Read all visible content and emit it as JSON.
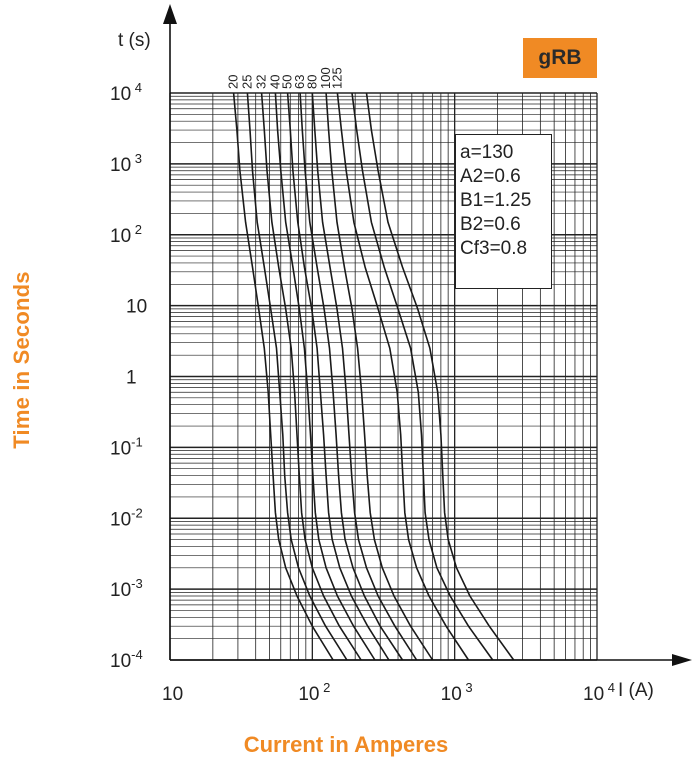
{
  "badge": "gRB",
  "outer_labels": {
    "y": "Time in Seconds",
    "x": "Current in Amperes"
  },
  "params": [
    "a=130",
    "A2=0.6",
    "B1=1.25",
    "B2=0.6",
    "Cf3=0.8"
  ],
  "chart_data": {
    "type": "line",
    "title": "",
    "xlabel": "I (A)",
    "ylabel": "t (s)",
    "xscale": "log",
    "yscale": "log",
    "xlim": [
      10,
      10000
    ],
    "ylim": [
      0.0001,
      10000
    ],
    "grid": true,
    "x_ticks": [
      {
        "v": 10,
        "label": "10"
      },
      {
        "v": 100,
        "label": "10 2"
      },
      {
        "v": 1000,
        "label": "10 3"
      },
      {
        "v": 10000,
        "label": "10 4"
      }
    ],
    "y_ticks": [
      {
        "v": 10000,
        "label": "10 4"
      },
      {
        "v": 1000,
        "label": "10 3"
      },
      {
        "v": 100,
        "label": "10 2"
      },
      {
        "v": 10,
        "label": "10"
      },
      {
        "v": 1,
        "label": "1"
      },
      {
        "v": 0.1,
        "label": "10-1"
      },
      {
        "v": 0.01,
        "label": "10-2"
      },
      {
        "v": 0.001,
        "label": "10-3"
      },
      {
        "v": 0.0001,
        "label": "10-4"
      }
    ],
    "series": [
      {
        "name": "20",
        "points": [
          [
            28,
            10000
          ],
          [
            29.5,
            3000
          ],
          [
            31,
            800
          ],
          [
            34,
            150
          ],
          [
            38,
            35
          ],
          [
            42,
            9
          ],
          [
            46,
            2.5
          ],
          [
            49,
            0.6
          ],
          [
            51,
            0.15
          ],
          [
            53,
            0.04
          ],
          [
            55,
            0.012
          ],
          [
            58,
            0.005
          ],
          [
            65,
            0.002
          ],
          [
            78,
            0.0008
          ],
          [
            100,
            0.0003
          ],
          [
            140,
            0.0001
          ]
        ]
      },
      {
        "name": "25",
        "points": [
          [
            35,
            10000
          ],
          [
            36.5,
            3000
          ],
          [
            38,
            800
          ],
          [
            41,
            150
          ],
          [
            46,
            35
          ],
          [
            51,
            9
          ],
          [
            56,
            2.5
          ],
          [
            59,
            0.6
          ],
          [
            62,
            0.15
          ],
          [
            64,
            0.04
          ],
          [
            67,
            0.012
          ],
          [
            71,
            0.005
          ],
          [
            80,
            0.002
          ],
          [
            96,
            0.0008
          ],
          [
            124,
            0.0003
          ],
          [
            175,
            0.0001
          ]
        ]
      },
      {
        "name": "32",
        "points": [
          [
            44,
            10000
          ],
          [
            46,
            3000
          ],
          [
            48,
            800
          ],
          [
            52,
            150
          ],
          [
            58,
            35
          ],
          [
            65,
            9
          ],
          [
            71,
            2.5
          ],
          [
            75,
            0.6
          ],
          [
            78,
            0.15
          ],
          [
            81,
            0.04
          ],
          [
            84,
            0.012
          ],
          [
            89,
            0.005
          ],
          [
            100,
            0.002
          ],
          [
            120,
            0.0008
          ],
          [
            155,
            0.0003
          ],
          [
            220,
            0.0001
          ]
        ]
      },
      {
        "name": "40",
        "points": [
          [
            55,
            10000
          ],
          [
            57,
            3000
          ],
          [
            60,
            800
          ],
          [
            65,
            150
          ],
          [
            73,
            35
          ],
          [
            81,
            9
          ],
          [
            88,
            2.5
          ],
          [
            93,
            0.6
          ],
          [
            97,
            0.15
          ],
          [
            101,
            0.04
          ],
          [
            105,
            0.012
          ],
          [
            111,
            0.005
          ],
          [
            125,
            0.002
          ],
          [
            150,
            0.0008
          ],
          [
            195,
            0.0003
          ],
          [
            275,
            0.0001
          ]
        ]
      },
      {
        "name": "50",
        "points": [
          [
            67,
            10000
          ],
          [
            70,
            3000
          ],
          [
            73,
            800
          ],
          [
            79,
            150
          ],
          [
            88,
            35
          ],
          [
            99,
            9
          ],
          [
            108,
            2.5
          ],
          [
            114,
            0.6
          ],
          [
            120,
            0.15
          ],
          [
            125,
            0.04
          ],
          [
            130,
            0.012
          ],
          [
            138,
            0.005
          ],
          [
            156,
            0.002
          ],
          [
            188,
            0.0008
          ],
          [
            245,
            0.0003
          ],
          [
            345,
            0.0001
          ]
        ]
      },
      {
        "name": "63",
        "points": [
          [
            82,
            10000
          ],
          [
            85,
            3000
          ],
          [
            89,
            800
          ],
          [
            96,
            150
          ],
          [
            108,
            35
          ],
          [
            121,
            9
          ],
          [
            132,
            2.5
          ],
          [
            140,
            0.6
          ],
          [
            147,
            0.15
          ],
          [
            153,
            0.04
          ],
          [
            160,
            0.012
          ],
          [
            170,
            0.005
          ],
          [
            193,
            0.002
          ],
          [
            232,
            0.0008
          ],
          [
            300,
            0.0003
          ],
          [
            430,
            0.0001
          ]
        ]
      },
      {
        "name": "80",
        "points": [
          [
            100,
            10000
          ],
          [
            104,
            3000
          ],
          [
            109,
            800
          ],
          [
            118,
            150
          ],
          [
            133,
            35
          ],
          [
            149,
            9
          ],
          [
            163,
            2.5
          ],
          [
            173,
            0.6
          ],
          [
            181,
            0.15
          ],
          [
            189,
            0.04
          ],
          [
            198,
            0.012
          ],
          [
            211,
            0.005
          ],
          [
            240,
            0.002
          ],
          [
            290,
            0.0008
          ],
          [
            380,
            0.0003
          ],
          [
            540,
            0.0001
          ]
        ]
      },
      {
        "name": "100",
        "points": [
          [
            125,
            10000
          ],
          [
            130,
            3000
          ],
          [
            137,
            800
          ],
          [
            149,
            150
          ],
          [
            168,
            35
          ],
          [
            190,
            9
          ],
          [
            208,
            2.5
          ],
          [
            222,
            0.6
          ],
          [
            233,
            0.15
          ],
          [
            243,
            0.04
          ],
          [
            255,
            0.012
          ],
          [
            273,
            0.005
          ],
          [
            310,
            0.002
          ],
          [
            375,
            0.0008
          ],
          [
            490,
            0.0003
          ],
          [
            700,
            0.0001
          ]
        ]
      },
      {
        "name": "125",
        "points": [
          [
            150,
            10000
          ],
          [
            160,
            3000
          ],
          [
            173,
            800
          ],
          [
            196,
            150
          ],
          [
            235,
            35
          ],
          [
            290,
            9
          ],
          [
            350,
            2.5
          ],
          [
            395,
            0.6
          ],
          [
            418,
            0.15
          ],
          [
            432,
            0.04
          ],
          [
            446,
            0.012
          ],
          [
            475,
            0.005
          ],
          [
            540,
            0.002
          ],
          [
            660,
            0.0008
          ],
          [
            870,
            0.0003
          ],
          [
            1250,
            0.0001
          ]
        ]
      },
      {
        "name": "",
        "points": [
          [
            190,
            10000
          ],
          [
            205,
            3000
          ],
          [
            225,
            800
          ],
          [
            260,
            150
          ],
          [
            320,
            35
          ],
          [
            400,
            9
          ],
          [
            490,
            2.5
          ],
          [
            555,
            0.6
          ],
          [
            585,
            0.15
          ],
          [
            603,
            0.04
          ],
          [
            620,
            0.012
          ],
          [
            660,
            0.005
          ],
          [
            750,
            0.002
          ],
          [
            930,
            0.0008
          ],
          [
            1250,
            0.0003
          ],
          [
            1850,
            0.0001
          ]
        ]
      },
      {
        "name": "",
        "points": [
          [
            240,
            10000
          ],
          [
            260,
            3000
          ],
          [
            290,
            800
          ],
          [
            340,
            150
          ],
          [
            430,
            35
          ],
          [
            550,
            9
          ],
          [
            670,
            2.5
          ],
          [
            760,
            0.6
          ],
          [
            800,
            0.15
          ],
          [
            825,
            0.04
          ],
          [
            850,
            0.012
          ],
          [
            900,
            0.005
          ],
          [
            1030,
            0.002
          ],
          [
            1280,
            0.0008
          ],
          [
            1750,
            0.0003
          ],
          [
            2600,
            0.0001
          ]
        ]
      }
    ]
  }
}
